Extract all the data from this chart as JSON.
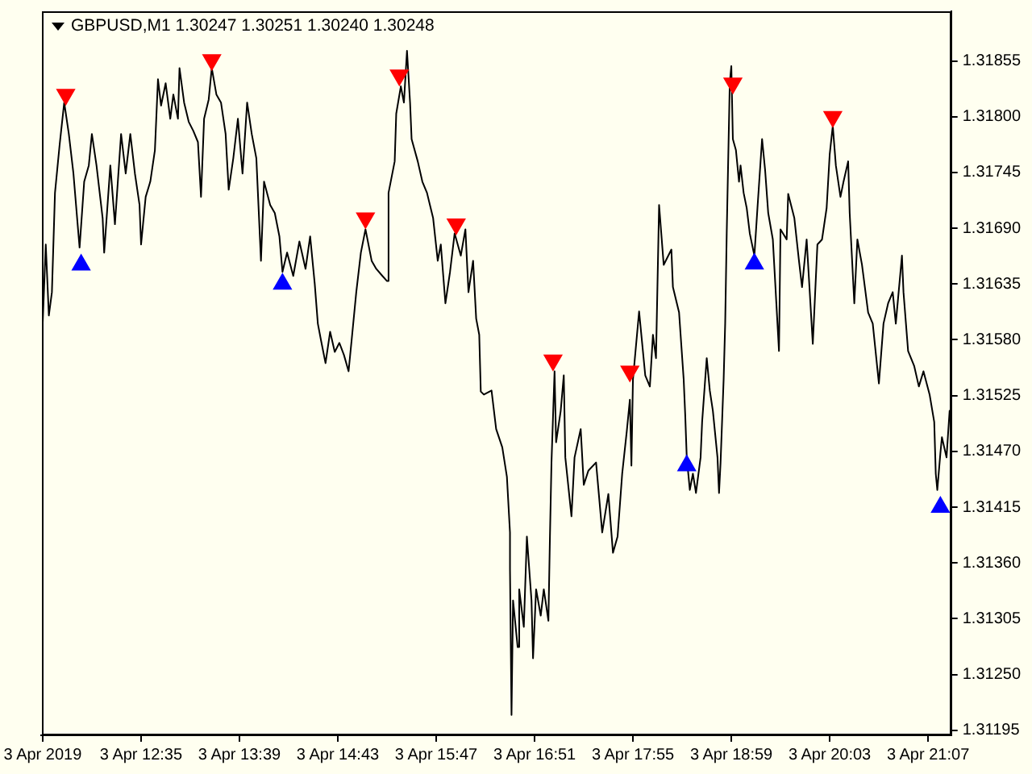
{
  "chart_data": {
    "type": "line",
    "title": "GBPUSD,M1 1.30247 1.30251 1.30240 1.30248",
    "xlim": [
      "2019-04-03T11:30",
      "2019-04-03T21:22"
    ],
    "xticks": [
      {
        "value": "2019-04-03T11:31",
        "label": "3 Apr 2019"
      },
      {
        "value": "2019-04-03T12:35",
        "label": "3 Apr 12:35"
      },
      {
        "value": "2019-04-03T13:39",
        "label": "3 Apr 13:39"
      },
      {
        "value": "2019-04-03T14:43",
        "label": "3 Apr 14:43"
      },
      {
        "value": "2019-04-03T15:47",
        "label": "3 Apr 15:47"
      },
      {
        "value": "2019-04-03T16:51",
        "label": "3 Apr 16:51"
      },
      {
        "value": "2019-04-03T17:55",
        "label": "3 Apr 17:55"
      },
      {
        "value": "2019-04-03T18:59",
        "label": "3 Apr 18:59"
      },
      {
        "value": "2019-04-03T20:03",
        "label": "3 Apr 20:03"
      },
      {
        "value": "2019-04-03T21:07",
        "label": "3 Apr 21:07"
      }
    ],
    "ylim": [
      1.3119,
      1.31904
    ],
    "yticks": [
      1.31195,
      {
        "value": 1.3125,
        "label": "1.31250"
      },
      1.31305,
      {
        "value": 1.3136,
        "label": "1.31360"
      },
      1.31415,
      {
        "value": 1.3147,
        "label": "1.31470"
      },
      1.31525,
      {
        "value": 1.3158,
        "label": "1.31580"
      },
      1.31635,
      {
        "value": 1.3169,
        "label": "1.31690"
      },
      1.31745,
      {
        "value": 1.318,
        "label": "1.31800"
      },
      1.31855
    ],
    "series": [
      {
        "type": "line",
        "color": "#000000",
        "x": [
          "2019-04-03T11:31",
          "2019-04-03T11:33",
          "2019-04-03T11:35",
          "2019-04-03T11:37",
          "2019-04-03T11:39",
          "2019-04-03T11:42",
          "2019-04-03T11:45",
          "2019-04-03T11:48",
          "2019-04-03T11:51",
          "2019-04-03T11:54",
          "2019-04-03T11:55",
          "2019-04-03T11:58",
          "2019-04-03T12:01",
          "2019-04-03T12:03",
          "2019-04-03T12:06",
          "2019-04-03T12:10",
          "2019-04-03T12:11",
          "2019-04-03T12:15",
          "2019-04-03T12:18",
          "2019-04-03T12:22",
          "2019-04-03T12:25",
          "2019-04-03T12:28",
          "2019-04-03T12:31",
          "2019-04-03T12:34",
          "2019-04-03T12:35",
          "2019-04-03T12:38",
          "2019-04-03T12:41",
          "2019-04-03T12:44",
          "2019-04-03T12:46",
          "2019-04-03T12:48",
          "2019-04-03T12:51",
          "2019-04-03T12:54",
          "2019-04-03T12:56",
          "2019-04-03T12:59",
          "2019-04-03T13:00",
          "2019-04-03T13:03",
          "2019-04-03T13:06",
          "2019-04-03T13:09",
          "2019-04-03T13:12",
          "2019-04-03T13:14",
          "2019-04-03T13:16",
          "2019-04-03T13:19",
          "2019-04-03T13:21",
          "2019-04-03T13:24",
          "2019-04-03T13:27",
          "2019-04-03T13:30",
          "2019-04-03T13:32",
          "2019-04-03T13:35",
          "2019-04-03T13:38",
          "2019-04-03T13:41",
          "2019-04-03T13:44",
          "2019-04-03T13:47",
          "2019-04-03T13:50",
          "2019-04-03T13:53",
          "2019-04-03T13:55",
          "2019-04-03T13:59",
          "2019-04-03T14:02",
          "2019-04-03T14:05",
          "2019-04-03T14:07",
          "2019-04-03T14:10",
          "2019-04-03T14:14",
          "2019-04-03T14:18",
          "2019-04-03T14:22",
          "2019-04-03T14:25",
          "2019-04-03T14:28",
          "2019-04-03T14:30",
          "2019-04-03T14:32",
          "2019-04-03T14:35",
          "2019-04-03T14:38",
          "2019-04-03T14:41",
          "2019-04-03T14:44",
          "2019-04-03T14:47",
          "2019-04-03T14:50",
          "2019-04-03T14:52",
          "2019-04-03T14:55",
          "2019-04-03T14:58",
          "2019-04-03T15:01",
          "2019-04-03T15:05",
          "2019-04-03T15:08",
          "2019-04-03T15:12",
          "2019-04-03T15:15",
          "2019-04-03T15:16",
          "2019-04-03T15:20",
          "2019-04-03T15:21",
          "2019-04-03T15:24",
          "2019-04-03T15:26",
          "2019-04-03T15:28",
          "2019-04-03T15:30",
          "2019-04-03T15:31",
          "2019-04-03T15:35",
          "2019-04-03T15:38",
          "2019-04-03T15:41",
          "2019-04-03T15:45",
          "2019-04-03T15:48",
          "2019-04-03T15:50",
          "2019-04-03T15:53",
          "2019-04-03T15:56",
          "2019-04-03T15:59",
          "2019-04-03T16:03",
          "2019-04-03T16:06",
          "2019-04-03T16:08",
          "2019-04-03T16:11",
          "2019-04-03T16:13",
          "2019-04-03T16:15",
          "2019-04-03T16:16",
          "2019-04-03T16:18",
          "2019-04-03T16:23",
          "2019-04-03T16:26",
          "2019-04-03T16:30",
          "2019-04-03T16:33",
          "2019-04-03T16:35",
          "2019-04-03T16:35",
          "2019-04-03T16:36",
          "2019-04-03T16:37",
          "2019-04-03T16:40",
          "2019-04-03T16:41",
          "2019-04-03T16:44",
          "2019-04-03T16:46",
          "2019-04-03T16:49",
          "2019-04-03T16:50",
          "2019-04-03T16:52",
          "2019-04-03T16:55",
          "2019-04-03T16:57",
          "2019-04-03T17:00",
          "2019-04-03T17:01",
          "2019-04-03T17:02",
          "2019-04-03T17:04",
          "2019-04-03T17:05",
          "2019-04-03T17:08",
          "2019-04-03T17:10",
          "2019-04-03T17:11",
          "2019-04-03T17:15",
          "2019-04-03T17:17",
          "2019-04-03T17:21",
          "2019-04-03T17:23",
          "2019-04-03T17:26",
          "2019-04-03T17:31",
          "2019-04-03T17:35",
          "2019-04-03T17:39",
          "2019-04-03T17:42",
          "2019-04-03T17:45",
          "2019-04-03T17:48",
          "2019-04-03T17:51",
          "2019-04-03T17:53",
          "2019-04-03T17:54",
          "2019-04-03T17:55",
          "2019-04-03T17:59",
          "2019-04-03T18:03",
          "2019-04-03T18:06",
          "2019-04-03T18:08",
          "2019-04-03T18:10",
          "2019-04-03T18:12",
          "2019-04-03T18:15",
          "2019-04-03T18:20",
          "2019-04-03T18:21",
          "2019-04-03T18:25",
          "2019-04-03T18:26",
          "2019-04-03T18:28",
          "2019-04-03T18:29",
          "2019-04-03T18:30",
          "2019-04-03T18:32",
          "2019-04-03T18:34",
          "2019-04-03T18:36",
          "2019-04-03T18:39",
          "2019-04-03T18:40",
          "2019-04-03T18:42",
          "2019-04-03T18:43",
          "2019-04-03T18:45",
          "2019-04-03T18:47",
          "2019-04-03T18:50",
          "2019-04-03T18:51",
          "2019-04-03T18:52",
          "2019-04-03T18:54",
          "2019-04-03T18:55",
          "2019-04-03T18:56",
          "2019-04-03T18:58",
          "2019-04-03T18:59",
          "2019-04-03T19:00",
          "2019-04-03T19:02",
          "2019-04-03T19:04",
          "2019-04-03T19:05",
          "2019-04-03T19:07",
          "2019-04-03T19:09",
          "2019-04-03T19:11",
          "2019-04-03T19:14",
          "2019-04-03T19:16",
          "2019-04-03T19:19",
          "2019-04-03T19:21",
          "2019-04-03T19:23",
          "2019-04-03T19:26",
          "2019-04-03T19:30",
          "2019-04-03T19:31",
          "2019-04-03T19:35",
          "2019-04-03T19:36",
          "2019-04-03T19:40",
          "2019-04-03T19:43",
          "2019-04-03T19:45",
          "2019-04-03T19:48",
          "2019-04-03T19:52",
          "2019-04-03T19:55",
          "2019-04-03T19:58",
          "2019-04-03T20:01",
          "2019-04-03T20:03",
          "2019-04-03T20:05",
          "2019-04-03T20:07",
          "2019-04-03T20:10",
          "2019-04-03T20:12",
          "2019-04-03T20:15",
          "2019-04-03T20:16",
          "2019-04-03T20:19",
          "2019-04-03T20:21",
          "2019-04-03T20:24",
          "2019-04-03T20:28",
          "2019-04-03T20:31",
          "2019-04-03T20:35",
          "2019-04-03T20:38",
          "2019-04-03T20:41",
          "2019-04-03T20:44",
          "2019-04-03T20:46",
          "2019-04-03T20:50",
          "2019-04-03T20:51",
          "2019-04-03T20:54",
          "2019-04-03T20:58",
          "2019-04-03T21:01",
          "2019-04-03T21:04",
          "2019-04-03T21:08",
          "2019-04-03T21:11",
          "2019-04-03T21:12",
          "2019-04-03T21:13",
          "2019-04-03T21:15",
          "2019-04-03T21:16",
          "2019-04-03T21:19",
          "2019-04-03T21:21"
        ],
        "values": [
          1.31596,
          1.31674,
          1.31604,
          1.31627,
          1.31725,
          1.31772,
          1.31814,
          1.31783,
          1.31744,
          1.31689,
          1.31671,
          1.31736,
          1.31752,
          1.31783,
          1.31752,
          1.317,
          1.31666,
          1.31752,
          1.31694,
          1.31783,
          1.31744,
          1.31783,
          1.31744,
          1.31713,
          1.31674,
          1.31721,
          1.31736,
          1.31767,
          1.31837,
          1.31811,
          1.31833,
          1.31798,
          1.31822,
          1.31798,
          1.31848,
          1.31814,
          1.31795,
          1.31786,
          1.31775,
          1.31721,
          1.31798,
          1.31817,
          1.31848,
          1.31822,
          1.31814,
          1.31783,
          1.31728,
          1.31759,
          1.31798,
          1.31744,
          1.31814,
          1.31783,
          1.31759,
          1.31658,
          1.31736,
          1.31713,
          1.31705,
          1.31682,
          1.31647,
          1.31666,
          1.31643,
          1.31677,
          1.3165,
          1.31682,
          1.31635,
          1.31596,
          1.3158,
          1.31557,
          1.31588,
          1.31568,
          1.31577,
          1.31565,
          1.31549,
          1.3158,
          1.31627,
          1.31666,
          1.31689,
          1.31658,
          1.3165,
          1.31643,
          1.31638,
          1.31725,
          1.31756,
          1.31803,
          1.3183,
          1.31814,
          1.31865,
          1.31814,
          1.31778,
          1.31756,
          1.31736,
          1.31725,
          1.317,
          1.31658,
          1.31674,
          1.31616,
          1.31647,
          1.31685,
          1.31663,
          1.31689,
          1.31627,
          1.31658,
          1.31601,
          1.31585,
          1.31529,
          1.31526,
          1.3153,
          1.31492,
          1.31474,
          1.31445,
          1.3139,
          1.31354,
          1.3121,
          1.31323,
          1.31277,
          1.31334,
          1.31297,
          1.31386,
          1.31323,
          1.31266,
          1.31334,
          1.31308,
          1.31334,
          1.31303,
          1.31386,
          1.31459,
          1.31549,
          1.31479,
          1.3151,
          1.31545,
          1.31464,
          1.31406,
          1.31464,
          1.31492,
          1.31437,
          1.31451,
          1.31459,
          1.3139,
          1.31428,
          1.3137,
          1.31386,
          1.31448,
          1.3149,
          1.31521,
          1.31456,
          1.31541,
          1.31608,
          1.31545,
          1.31534,
          1.31585,
          1.31562,
          1.31713,
          1.31654,
          1.31669,
          1.31632,
          1.31607,
          1.31585,
          1.31541,
          1.31506,
          1.31464,
          1.31432,
          1.31448,
          1.31429,
          1.31464,
          1.31499,
          1.31541,
          1.31562,
          1.3153,
          1.3151,
          1.31464,
          1.31429,
          1.31459,
          1.31541,
          1.31596,
          1.31685,
          1.31834,
          1.3185,
          1.31778,
          1.31767,
          1.31736,
          1.31752,
          1.31725,
          1.3171,
          1.31685,
          1.31663,
          1.3171,
          1.31778,
          1.31747,
          1.31705,
          1.31679,
          1.31569,
          1.31689,
          1.31679,
          1.31724,
          1.317,
          1.31658,
          1.31632,
          1.31679,
          1.31576,
          1.31674,
          1.31679,
          1.3171,
          1.31763,
          1.31791,
          1.31752,
          1.31721,
          1.31736,
          1.31756,
          1.31705,
          1.31616,
          1.31679,
          1.31654,
          1.31607,
          1.31596,
          1.31537,
          1.31596,
          1.31616,
          1.31627,
          1.31596,
          1.31663,
          1.31627,
          1.31569,
          1.31554,
          1.31534,
          1.31549,
          1.31526,
          1.31499,
          1.31448,
          1.31432,
          1.31468,
          1.31484,
          1.31464,
          1.3151
        ]
      },
      {
        "type": "scatter",
        "color": "#ff0000",
        "marker": "triangle",
        "x": [
          "2019-04-03T11:46",
          "2019-04-03T13:21",
          "2019-04-03T15:01",
          "2019-04-03T15:23",
          "2019-04-03T16:00",
          "2019-04-03T17:03",
          "2019-04-03T17:53",
          "2019-04-03T19:00",
          "2019-04-03T20:05"
        ],
        "values": [
          1.31822,
          1.31856,
          1.317,
          1.31841,
          1.31694,
          1.3156,
          1.31549,
          1.31833,
          1.318
        ]
      },
      {
        "type": "scatter",
        "color": "#0000ff",
        "marker": "triangle",
        "x": [
          "2019-04-03T11:56",
          "2019-04-03T14:07",
          "2019-04-03T18:30",
          "2019-04-03T19:14",
          "2019-04-03T21:15"
        ],
        "values": [
          1.31654,
          1.31635,
          1.31456,
          1.31655,
          1.31415
        ]
      }
    ]
  }
}
